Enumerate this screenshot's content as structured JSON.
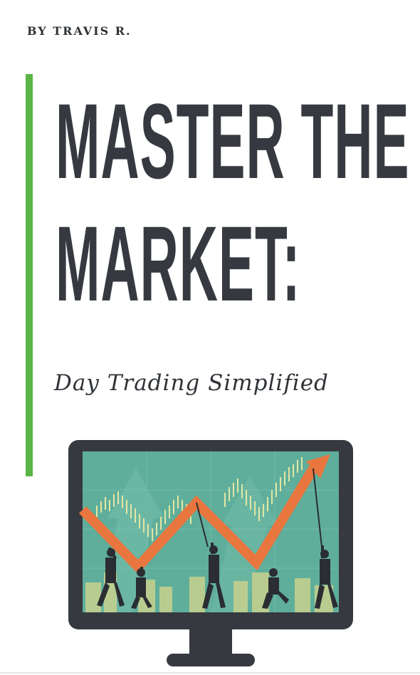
{
  "cover": {
    "author": "BY TRAVIS R.",
    "title_line1": "MASTER THE",
    "title_line2": "MARKET:",
    "subtitle": "Day Trading Simplified"
  },
  "colors": {
    "accent": "#5bb446",
    "title_text": "#363a40",
    "monitor_frame": "#363a40",
    "screen_bg": "#5fae9b",
    "arrow": "#e8763e",
    "candles": "#e3e7a2"
  },
  "illustration": {
    "name": "monitor-with-businessmen-pulling-zigzag-arrow"
  }
}
